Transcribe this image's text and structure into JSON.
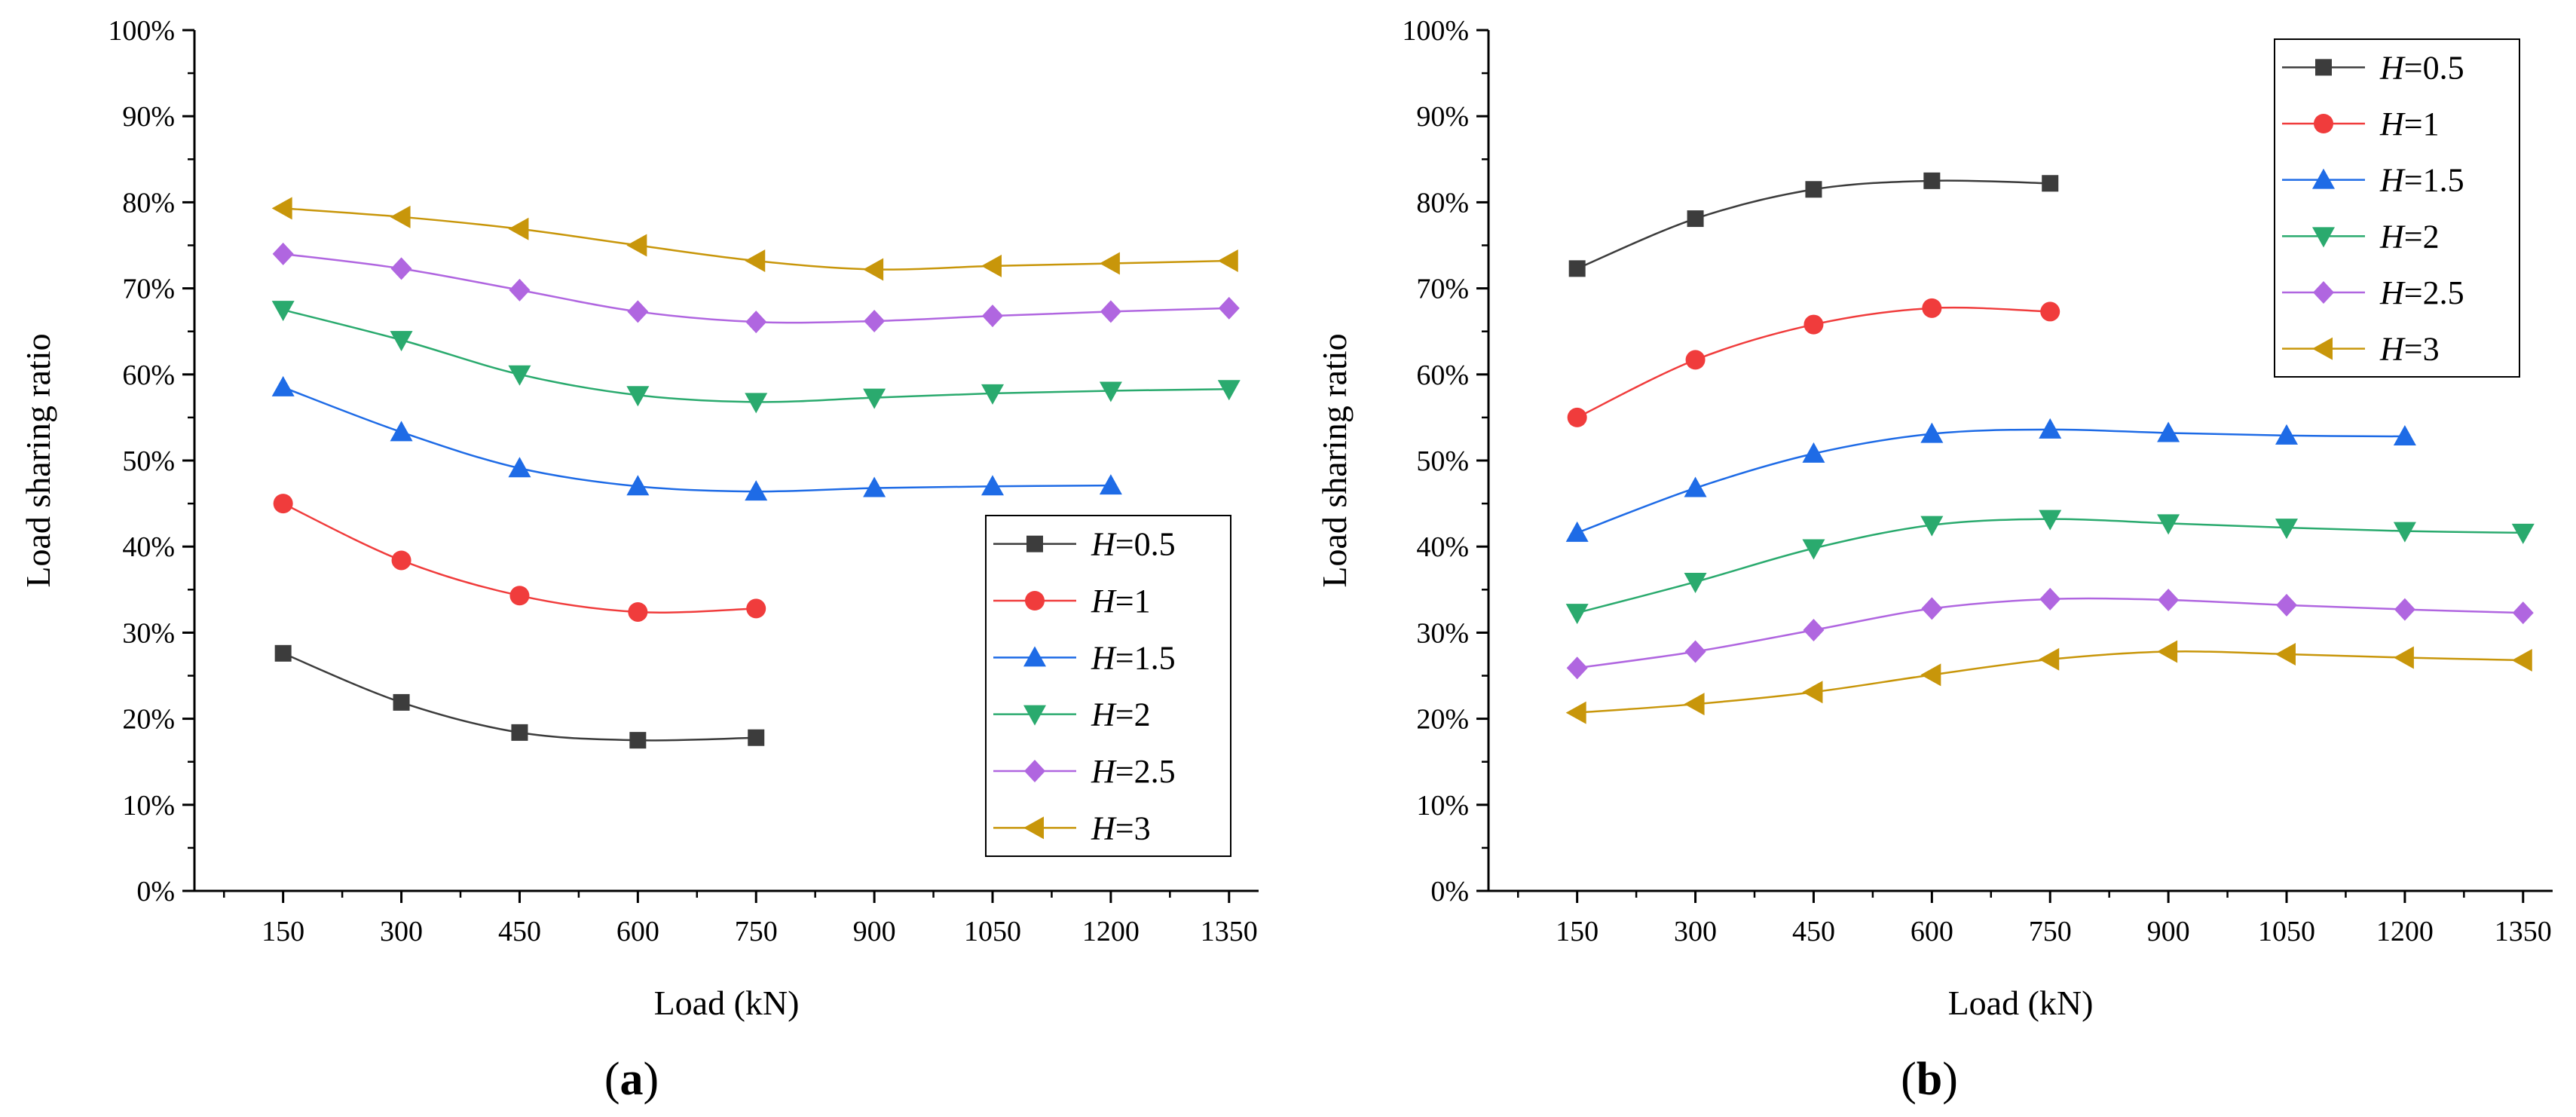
{
  "chart_data": [
    {
      "type": "line",
      "panel_label": "a",
      "xlabel": "Load (kN)",
      "ylabel": "Load sharing ratio",
      "xticks": [
        150,
        300,
        450,
        600,
        750,
        900,
        1050,
        1200,
        1350
      ],
      "yticks": [
        "0%",
        "10%",
        "20%",
        "30%",
        "40%",
        "50%",
        "60%",
        "70%",
        "80%",
        "90%",
        "100%"
      ],
      "xlim": [
        37.5,
        1387.5
      ],
      "ylim": [
        0,
        100
      ],
      "grid": false,
      "legend_position": "bottom-right",
      "series": [
        {
          "name": "H=0.5",
          "var": "H",
          "val": "=0.5",
          "color": "#3c3c3c",
          "marker": "square",
          "x": [
            150,
            300,
            450,
            600,
            750
          ],
          "y": [
            27.6,
            21.9,
            18.4,
            17.5,
            17.8
          ]
        },
        {
          "name": "H=1",
          "var": "H",
          "val": "=1",
          "color": "#f03c3c",
          "marker": "circle",
          "x": [
            150,
            300,
            450,
            600,
            750
          ],
          "y": [
            45.0,
            38.4,
            34.3,
            32.4,
            32.8
          ]
        },
        {
          "name": "H=1.5",
          "var": "H",
          "val": "=1.5",
          "color": "#1e6be6",
          "marker": "triangle-up",
          "x": [
            150,
            300,
            450,
            600,
            750,
            900,
            1050,
            1200
          ],
          "y": [
            58.5,
            53.3,
            49.1,
            47.0,
            46.4,
            46.8,
            47.0,
            47.1
          ]
        },
        {
          "name": "H=2",
          "var": "H",
          "val": "=2",
          "color": "#2aaa6e",
          "marker": "triangle-down",
          "x": [
            150,
            300,
            450,
            600,
            750,
            900,
            1050,
            1200,
            1350
          ],
          "y": [
            67.5,
            64.0,
            60.0,
            57.6,
            56.8,
            57.3,
            57.8,
            58.1,
            58.3
          ]
        },
        {
          "name": "H=2.5",
          "var": "H",
          "val": "=2.5",
          "color": "#b066e0",
          "marker": "diamond",
          "x": [
            150,
            300,
            450,
            600,
            750,
            900,
            1050,
            1200,
            1350
          ],
          "y": [
            74.0,
            72.3,
            69.8,
            67.3,
            66.1,
            66.2,
            66.8,
            67.3,
            67.7
          ]
        },
        {
          "name": "H=3",
          "var": "H",
          "val": "=3",
          "color": "#c8960a",
          "marker": "triangle-left",
          "x": [
            150,
            300,
            450,
            600,
            750,
            900,
            1050,
            1200,
            1350
          ],
          "y": [
            79.3,
            78.3,
            76.9,
            75.0,
            73.2,
            72.2,
            72.6,
            72.9,
            73.2
          ]
        }
      ]
    },
    {
      "type": "line",
      "panel_label": "b",
      "xlabel": "Load (kN)",
      "ylabel": "Load sharing ratio",
      "xticks": [
        150,
        300,
        450,
        600,
        750,
        900,
        1050,
        1200,
        1350
      ],
      "yticks": [
        "0%",
        "10%",
        "20%",
        "30%",
        "40%",
        "50%",
        "60%",
        "70%",
        "80%",
        "90%",
        "100%"
      ],
      "xlim": [
        37.5,
        1387.5
      ],
      "ylim": [
        0,
        100
      ],
      "grid": false,
      "legend_position": "top-right",
      "series": [
        {
          "name": "H=0.5",
          "var": "H",
          "val": "=0.5",
          "color": "#3c3c3c",
          "marker": "square",
          "x": [
            150,
            300,
            450,
            600,
            750
          ],
          "y": [
            72.3,
            78.1,
            81.5,
            82.5,
            82.2
          ]
        },
        {
          "name": "H=1",
          "var": "H",
          "val": "=1",
          "color": "#f03c3c",
          "marker": "circle",
          "x": [
            150,
            300,
            450,
            600,
            750
          ],
          "y": [
            55.0,
            61.7,
            65.8,
            67.7,
            67.3
          ]
        },
        {
          "name": "H=1.5",
          "var": "H",
          "val": "=1.5",
          "color": "#1e6be6",
          "marker": "triangle-up",
          "x": [
            150,
            300,
            450,
            600,
            750,
            900,
            1050,
            1200
          ],
          "y": [
            41.6,
            46.8,
            50.8,
            53.1,
            53.6,
            53.2,
            52.9,
            52.8
          ]
        },
        {
          "name": "H=2",
          "var": "H",
          "val": "=2",
          "color": "#2aaa6e",
          "marker": "triangle-down",
          "x": [
            150,
            300,
            450,
            600,
            750,
            900,
            1050,
            1200,
            1350
          ],
          "y": [
            32.3,
            35.9,
            39.8,
            42.5,
            43.2,
            42.7,
            42.2,
            41.8,
            41.6
          ]
        },
        {
          "name": "H=2.5",
          "var": "H",
          "val": "=2.5",
          "color": "#b066e0",
          "marker": "diamond",
          "x": [
            150,
            300,
            450,
            600,
            750,
            900,
            1050,
            1200,
            1350
          ],
          "y": [
            25.9,
            27.8,
            30.3,
            32.8,
            33.9,
            33.8,
            33.2,
            32.7,
            32.3
          ]
        },
        {
          "name": "H=3",
          "var": "H",
          "val": "=3",
          "color": "#c8960a",
          "marker": "triangle-left",
          "x": [
            150,
            300,
            450,
            600,
            750,
            900,
            1050,
            1200,
            1350
          ],
          "y": [
            20.7,
            21.7,
            23.1,
            25.1,
            26.9,
            27.8,
            27.5,
            27.1,
            26.8
          ]
        }
      ]
    }
  ]
}
